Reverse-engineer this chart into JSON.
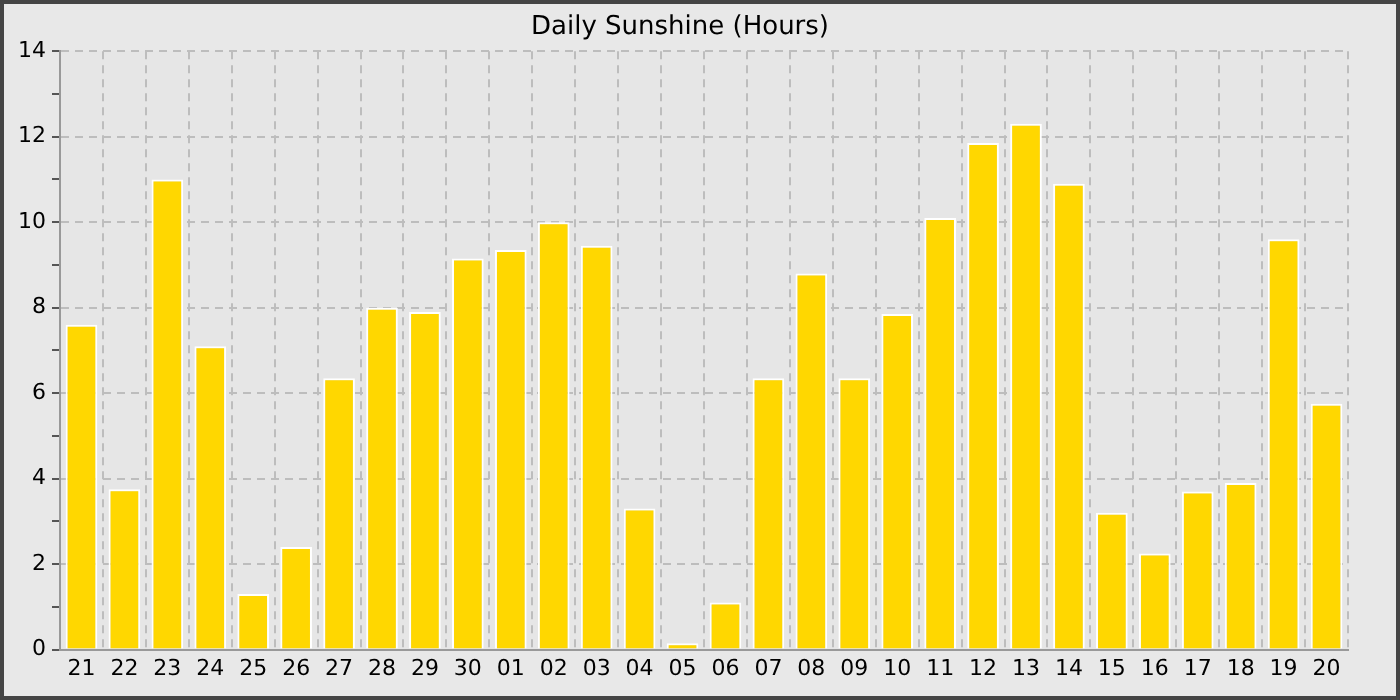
{
  "chart_data": {
    "type": "bar",
    "title": "Daily Sunshine (Hours)",
    "categories": [
      "21",
      "22",
      "23",
      "24",
      "25",
      "26",
      "27",
      "28",
      "29",
      "30",
      "01",
      "02",
      "03",
      "04",
      "05",
      "06",
      "07",
      "08",
      "09",
      "10",
      "11",
      "12",
      "13",
      "14",
      "15",
      "16",
      "17",
      "18",
      "19",
      "20"
    ],
    "values": [
      7.6,
      3.75,
      11.0,
      7.1,
      1.3,
      2.4,
      6.35,
      8.0,
      7.9,
      9.15,
      9.35,
      10.0,
      9.45,
      3.3,
      0.15,
      1.1,
      6.35,
      8.8,
      6.35,
      7.85,
      10.1,
      11.85,
      12.3,
      10.9,
      3.2,
      2.25,
      3.7,
      3.9,
      9.6,
      5.75
    ],
    "color": "#ffd700",
    "ylim": [
      0,
      14
    ],
    "yticks": [
      0,
      {
        "value": 1,
        "label": null
      },
      2,
      {
        "value": 3,
        "label": null
      },
      4,
      {
        "value": 5,
        "label": null
      },
      6,
      {
        "value": 7,
        "label": null
      },
      8,
      {
        "value": 9,
        "label": null
      },
      10,
      {
        "value": 11,
        "label": null
      },
      12,
      {
        "value": 13,
        "label": null
      },
      14
    ],
    "grid": true
  }
}
